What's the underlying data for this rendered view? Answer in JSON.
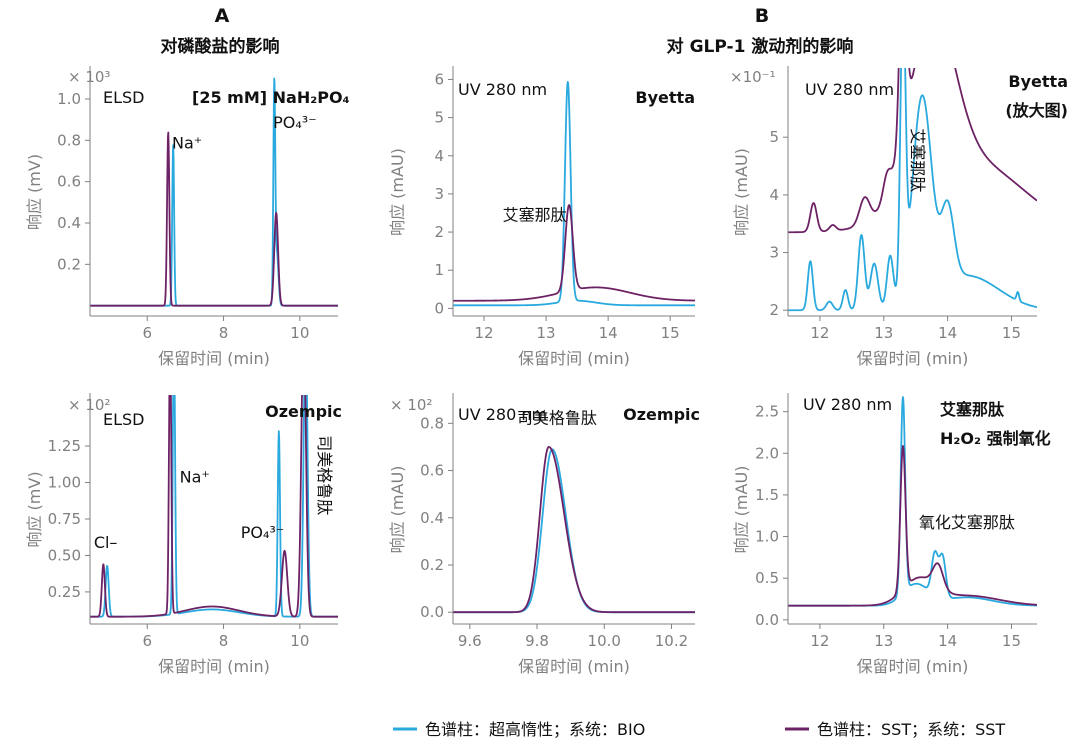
{
  "sections": {
    "A": {
      "letter": "A",
      "title": "对磷酸盐的影响"
    },
    "B": {
      "letter": "B",
      "title": "对 GLP-1 激动剂的影响"
    }
  },
  "legend": [
    {
      "label": "色谱柱：超高惰性；系统：BIO",
      "color": "#2aa9de"
    },
    {
      "label": "色谱柱：SST；系统：SST",
      "color": "#6e2266"
    }
  ],
  "colors": {
    "bio": "#2aa9de",
    "sst": "#6e2266",
    "axis": "#808080"
  },
  "chart_data": [
    {
      "id": "p1",
      "type": "line",
      "title": "ELSD",
      "title2": "[25 mM] NaH₂PO₄",
      "xlabel": "保留时间 (min)",
      "ylabel": "响应 (mV)",
      "multiplier": "× 10³",
      "xlim": [
        4.5,
        11
      ],
      "ylim": [
        -0.05,
        1.15
      ],
      "xticks": [
        6,
        8,
        10
      ],
      "yticks": [
        0.2,
        0.4,
        0.6,
        0.8,
        1.0
      ],
      "ytick_labels": [
        "0.2",
        "0.4",
        "0.6",
        "0.8",
        "1.0"
      ],
      "annotations": [
        {
          "text": "Na⁺",
          "x": 6.65,
          "y": 0.76
        },
        {
          "text": "PO₄³⁻",
          "x": 9.3,
          "y": 0.86
        }
      ],
      "series": [
        {
          "name": "BIO",
          "color": "#2aa9de",
          "baseline": 0.0,
          "peaks": [
            [
              6.68,
              0.78,
              0.025
            ],
            [
              9.33,
              1.05,
              0.025
            ],
            [
              9.4,
              0.25,
              0.04
            ]
          ]
        },
        {
          "name": "SST",
          "color": "#6e2266",
          "baseline": 0.0,
          "peaks": [
            [
              6.55,
              0.84,
              0.03
            ],
            [
              9.38,
              0.45,
              0.05
            ]
          ]
        }
      ]
    },
    {
      "id": "p2",
      "type": "line",
      "title": "UV 280 nm",
      "title2": "Byetta",
      "xlabel": "保留时间 (min)",
      "ylabel": "响应 (mAU)",
      "multiplier": "",
      "xlim": [
        11.5,
        15.4
      ],
      "ylim": [
        -0.2,
        6.3
      ],
      "xticks": [
        12,
        13,
        14,
        15
      ],
      "yticks": [
        0,
        1,
        2,
        3,
        4,
        5,
        6
      ],
      "ytick_labels": [
        "0",
        "1",
        "2",
        "3",
        "4",
        "5",
        "6"
      ],
      "annotations": [
        {
          "text": "艾塞那肽",
          "x": 12.3,
          "y": 2.3
        }
      ],
      "series": [
        {
          "name": "BIO",
          "color": "#2aa9de",
          "baseline": 0.08,
          "peaks": [
            [
              13.35,
              5.75,
              0.045
            ],
            [
              13.5,
              0.12,
              0.3
            ]
          ]
        },
        {
          "name": "SST",
          "color": "#6e2266",
          "baseline": 0.2,
          "peaks": [
            [
              13.37,
              2.25,
              0.06
            ],
            [
              13.8,
              0.35,
              0.55
            ]
          ]
        }
      ]
    },
    {
      "id": "p3",
      "type": "line",
      "title": "UV 280 nm",
      "title2": "Byetta",
      "title3": "(放大图)",
      "xlabel": "保留时间 (min)",
      "ylabel": "响应 (mAU)",
      "multiplier": "×10⁻¹",
      "xlim": [
        11.5,
        15.4
      ],
      "ylim": [
        1.9,
        6.2
      ],
      "xticks": [
        12,
        13,
        14,
        15
      ],
      "yticks": [
        2,
        3,
        4,
        5
      ],
      "ytick_labels": [
        "2",
        "3",
        "4",
        "5"
      ],
      "annotations": [
        {
          "text": "艾塞那肽",
          "x": 13.35,
          "y": 4.6,
          "vertical": true
        }
      ],
      "series": [
        {
          "name": "BIO",
          "color": "#2aa9de",
          "baseline": 2.0,
          "peaks": [
            [
              11.85,
              0.85,
              0.04
            ],
            [
              12.15,
              0.15,
              0.05
            ],
            [
              12.4,
              0.35,
              0.04
            ],
            [
              12.65,
              1.3,
              0.05
            ],
            [
              12.85,
              0.8,
              0.06
            ],
            [
              13.1,
              0.9,
              0.05
            ],
            [
              13.3,
              5.0,
              0.04
            ],
            [
              13.6,
              3.5,
              0.15
            ],
            [
              14.0,
              1.3,
              0.1
            ],
            [
              14.3,
              0.6,
              0.5
            ],
            [
              15.1,
              0.15,
              0.02
            ]
          ]
        },
        {
          "name": "SST",
          "color": "#6e2266",
          "baseline": 3.35,
          "peaks": [
            [
              11.9,
              0.5,
              0.05
            ],
            [
              12.2,
              0.1,
              0.05
            ],
            [
              12.7,
              0.45,
              0.08
            ],
            [
              13.05,
              0.35,
              0.06
            ],
            [
              13.3,
              3.5,
              0.05
            ],
            [
              13.75,
              3.0,
              0.35
            ],
            [
              14.4,
              1.2,
              0.8
            ]
          ]
        }
      ]
    },
    {
      "id": "p4",
      "type": "line",
      "title": "ELSD",
      "title2": "Ozempic",
      "xlabel": "保留时间 (min)",
      "ylabel": "响应 (mV)",
      "multiplier": "× 10²",
      "xlim": [
        4.5,
        11
      ],
      "ylim": [
        0.03,
        1.6
      ],
      "xticks": [
        6,
        8,
        10
      ],
      "yticks": [
        0.25,
        0.5,
        0.75,
        1.0,
        1.25
      ],
      "ytick_labels": [
        "0.25",
        "0.50",
        "0.75",
        "1.00",
        "1.25"
      ],
      "annotations": [
        {
          "text": "Cl–",
          "x": 4.6,
          "y": 0.55
        },
        {
          "text": "Na⁺",
          "x": 6.85,
          "y": 1.0
        },
        {
          "text": "PO₄³⁻",
          "x": 8.45,
          "y": 0.62
        },
        {
          "text": "司美格鲁肽",
          "x": 10.35,
          "y": 1.05,
          "vertical": true
        }
      ],
      "series": [
        {
          "name": "BIO",
          "color": "#2aa9de",
          "baseline": 0.08,
          "peaks": [
            [
              4.95,
              0.35,
              0.04
            ],
            [
              6.7,
              1.9,
              0.03
            ],
            [
              7.7,
              0.05,
              0.7
            ],
            [
              9.45,
              1.27,
              0.03
            ],
            [
              10.15,
              2.0,
              0.05
            ]
          ]
        },
        {
          "name": "SST",
          "color": "#6e2266",
          "baseline": 0.08,
          "peaks": [
            [
              4.85,
              0.36,
              0.04
            ],
            [
              6.6,
              1.9,
              0.03
            ],
            [
              7.7,
              0.07,
              0.7
            ],
            [
              9.6,
              0.45,
              0.07
            ],
            [
              10.1,
              2.0,
              0.06
            ]
          ]
        }
      ]
    },
    {
      "id": "p5",
      "type": "line",
      "title": "UV 280 nm",
      "title2": "Ozempic",
      "xlabel": "保留时间 (min)",
      "ylabel": "响应 (mAU)",
      "multiplier": "× 10²",
      "xlim": [
        9.55,
        10.27
      ],
      "ylim": [
        -0.05,
        0.92
      ],
      "xticks": [
        9.6,
        9.8,
        10.0,
        10.2
      ],
      "yticks": [
        0,
        0.2,
        0.4,
        0.6,
        0.8
      ],
      "ytick_labels": [
        "0.0",
        "0.2",
        "0.4",
        "0.6",
        "0.8"
      ],
      "annotations": [
        {
          "text": "司美格鲁肽",
          "x": 9.74,
          "y": 0.8
        }
      ],
      "series": [
        {
          "name": "BIO",
          "color": "#2aa9de",
          "baseline": 0.0,
          "peaks": [
            [
              9.845,
              0.69,
              0.028,
              0.04
            ]
          ]
        },
        {
          "name": "SST",
          "color": "#6e2266",
          "baseline": 0.0,
          "peaks": [
            [
              9.835,
              0.7,
              0.026,
              0.045
            ]
          ]
        }
      ]
    },
    {
      "id": "p6",
      "type": "line",
      "title": "UV 280 nm",
      "title2": "艾塞那肽",
      "title3": "H₂O₂ 强制氧化",
      "xlabel": "保留时间 (min)",
      "ylabel": "响应 (mAU)",
      "multiplier": "",
      "xlim": [
        11.5,
        15.4
      ],
      "ylim": [
        -0.05,
        2.7
      ],
      "xticks": [
        12,
        13,
        14,
        15
      ],
      "yticks": [
        0,
        0.5,
        1.0,
        1.5,
        2.0,
        2.5
      ],
      "ytick_labels": [
        "0.0",
        "0.5",
        "1.0",
        "1.5",
        "2.0",
        "2.5"
      ],
      "annotations": [
        {
          "text": "氧化艾塞那肽",
          "x": 13.55,
          "y": 1.1
        }
      ],
      "series": [
        {
          "name": "BIO",
          "color": "#2aa9de",
          "baseline": 0.17,
          "peaks": [
            [
              13.3,
              2.35,
              0.035
            ],
            [
              13.5,
              0.25,
              0.2
            ],
            [
              13.8,
              0.5,
              0.05
            ],
            [
              13.92,
              0.5,
              0.05
            ],
            [
              14.3,
              0.1,
              0.4
            ]
          ]
        },
        {
          "name": "SST",
          "color": "#6e2266",
          "baseline": 0.17,
          "peaks": [
            [
              13.3,
              1.72,
              0.04
            ],
            [
              13.55,
              0.3,
              0.25
            ],
            [
              13.85,
              0.28,
              0.08
            ],
            [
              14.3,
              0.12,
              0.5
            ]
          ]
        }
      ]
    }
  ]
}
